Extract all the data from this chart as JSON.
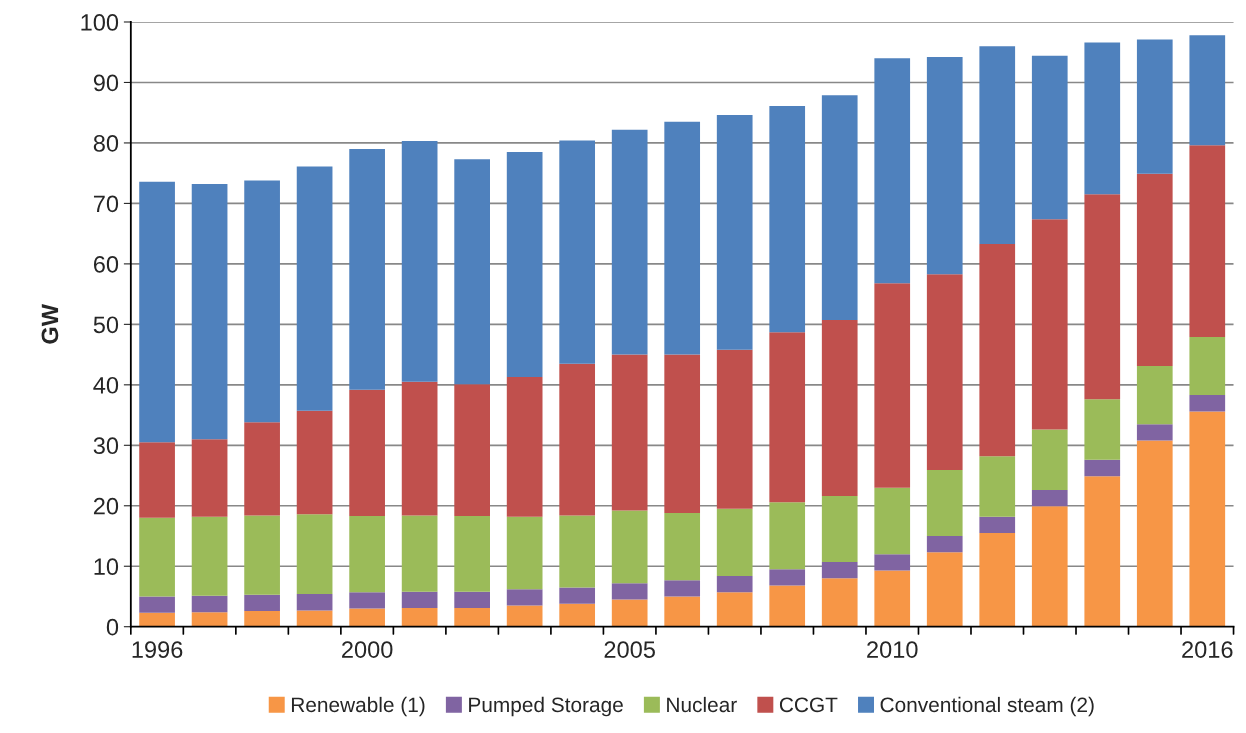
{
  "chart_data": {
    "type": "bar",
    "stacked": true,
    "ylabel": "GW",
    "categories": [
      "1996",
      null,
      null,
      null,
      "2000",
      null,
      null,
      null,
      null,
      "2005",
      null,
      null,
      null,
      null,
      "2010",
      null,
      null,
      null,
      null,
      null,
      "2016"
    ],
    "series": [
      {
        "name": "Renewable (1)",
        "color": "#f79646",
        "values": [
          2.3,
          2.4,
          2.6,
          2.7,
          3.0,
          3.1,
          3.1,
          3.5,
          3.8,
          4.5,
          5.0,
          5.7,
          6.8,
          8.0,
          9.3,
          12.3,
          15.5,
          19.9,
          24.9,
          30.8,
          35.6
        ]
      },
      {
        "name": "Pumped Storage",
        "color": "#8064a2",
        "values": [
          2.7,
          2.7,
          2.7,
          2.7,
          2.7,
          2.7,
          2.7,
          2.7,
          2.7,
          2.7,
          2.7,
          2.7,
          2.7,
          2.7,
          2.7,
          2.7,
          2.7,
          2.7,
          2.7,
          2.7,
          2.7
        ]
      },
      {
        "name": "Nuclear",
        "color": "#9bbb59",
        "values": [
          13.0,
          13.1,
          13.1,
          13.2,
          12.6,
          12.6,
          12.5,
          12.0,
          11.9,
          12.0,
          11.1,
          11.1,
          11.1,
          10.9,
          11.0,
          10.9,
          10.0,
          10.0,
          10.0,
          9.6,
          9.6
        ]
      },
      {
        "name": "CCGT",
        "color": "#c0504d",
        "values": [
          12.5,
          12.8,
          15.4,
          17.1,
          20.9,
          22.1,
          21.8,
          23.1,
          25.1,
          25.8,
          26.2,
          26.3,
          28.1,
          29.1,
          33.8,
          32.4,
          35.1,
          34.8,
          33.9,
          31.8,
          31.7
        ]
      },
      {
        "name": "Conventional steam (2)",
        "color": "#4f81bd",
        "values": [
          43.1,
          42.2,
          40.0,
          40.4,
          39.8,
          39.8,
          37.2,
          37.2,
          36.9,
          37.2,
          38.5,
          38.8,
          37.4,
          37.2,
          37.2,
          35.9,
          32.7,
          27.0,
          25.1,
          22.2,
          18.2
        ]
      }
    ],
    "ylim": [
      0,
      100
    ],
    "yticks": [
      0,
      10,
      20,
      30,
      40,
      50,
      60,
      70,
      80,
      90,
      100
    ],
    "grid": "y",
    "legend": "bottom"
  }
}
